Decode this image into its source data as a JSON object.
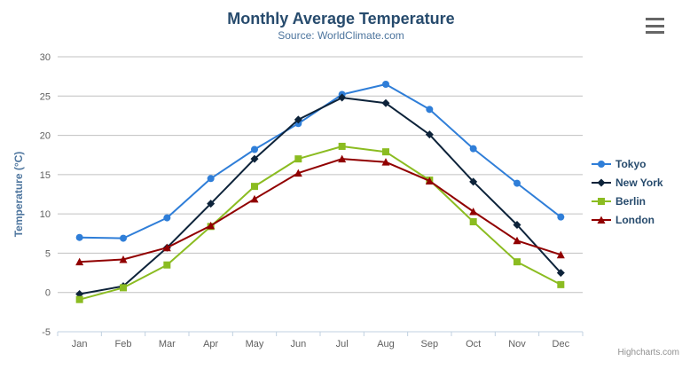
{
  "chart_data": {
    "type": "line",
    "title": "Monthly Average Temperature",
    "subtitle": "Source: WorldClimate.com",
    "xlabel": "",
    "ylabel": "Temperature (°C)",
    "categories": [
      "Jan",
      "Feb",
      "Mar",
      "Apr",
      "May",
      "Jun",
      "Jul",
      "Aug",
      "Sep",
      "Oct",
      "Nov",
      "Dec"
    ],
    "ylim": [
      -5,
      30
    ],
    "y_ticks": [
      -5,
      0,
      5,
      10,
      15,
      20,
      25,
      30
    ],
    "grid": true,
    "legend_position": "right",
    "series": [
      {
        "name": "Tokyo",
        "marker": "circle",
        "color": "#2f7ed8",
        "values": [
          7.0,
          6.9,
          9.5,
          14.5,
          18.2,
          21.5,
          25.2,
          26.5,
          23.3,
          18.3,
          13.9,
          9.6
        ]
      },
      {
        "name": "New York",
        "marker": "diamond",
        "color": "#0d233a",
        "values": [
          -0.2,
          0.8,
          5.7,
          11.3,
          17.0,
          22.0,
          24.8,
          24.1,
          20.1,
          14.1,
          8.6,
          2.5
        ]
      },
      {
        "name": "Berlin",
        "marker": "square",
        "color": "#8bbc21",
        "values": [
          -0.9,
          0.6,
          3.5,
          8.4,
          13.5,
          17.0,
          18.6,
          17.9,
          14.3,
          9.0,
          3.9,
          1.0
        ]
      },
      {
        "name": "London",
        "marker": "triangle",
        "color": "#910000",
        "values": [
          3.9,
          4.2,
          5.7,
          8.5,
          11.9,
          15.2,
          17.0,
          16.6,
          14.2,
          10.3,
          6.6,
          4.8
        ]
      }
    ]
  },
  "colors": {
    "title": "#274b6d",
    "subtitle": "#4d759e",
    "axis_title": "#4d759e",
    "axis_label": "#606060",
    "grid_line": "#c0c0c0",
    "axis_line": "#c0d0e0",
    "legend_text": "#274b6d",
    "credits_text": "#909090",
    "menu_icon": "#666666",
    "background": "#ffffff"
  },
  "credits": {
    "label": "Highcharts.com"
  }
}
